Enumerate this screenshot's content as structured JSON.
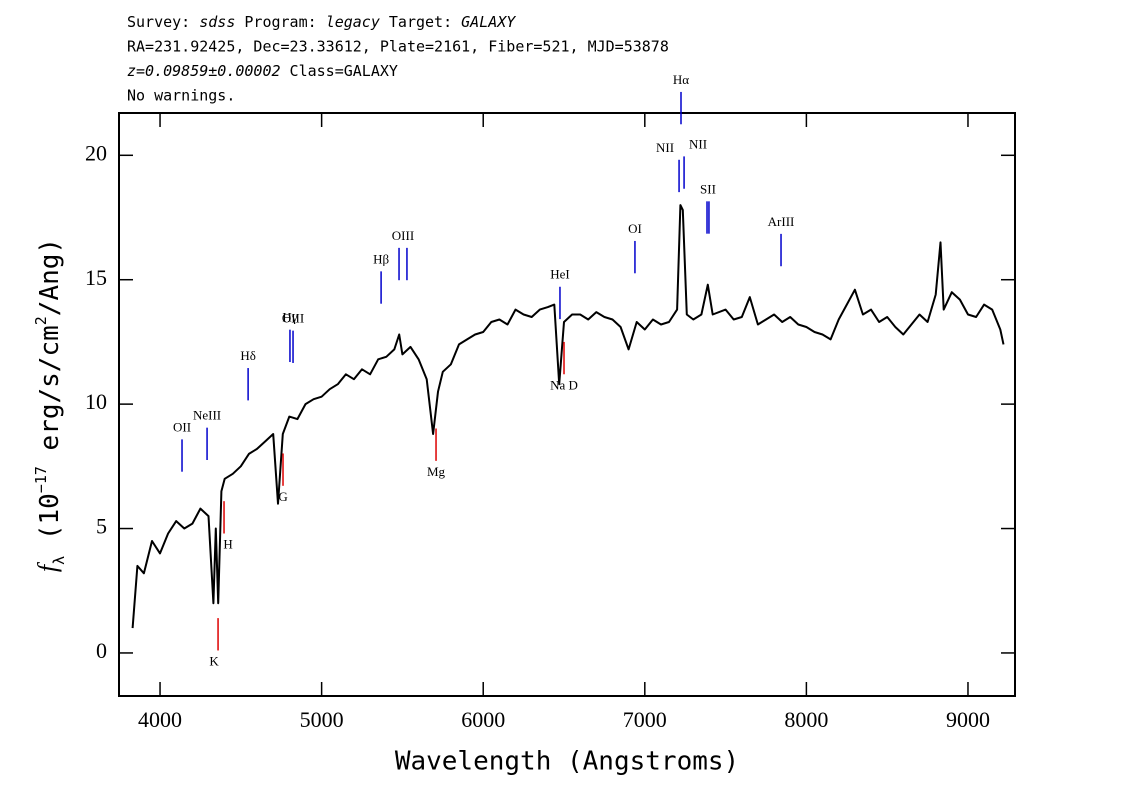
{
  "chart_data": {
    "type": "line",
    "header": [
      [
        {
          "text": "Survey: "
        },
        {
          "text": "sdss",
          "italic": true
        },
        {
          "text": " Program: "
        },
        {
          "text": "legacy",
          "italic": true
        },
        {
          "text": " Target: "
        },
        {
          "text": "GALAXY",
          "italic": true
        }
      ],
      [
        {
          "text": "RA=231.92425, Dec=23.33612, Plate=2161, Fiber=521, MJD=53878"
        }
      ],
      [
        {
          "text": "z=0.09859±0.00002",
          "italic": true
        },
        {
          "text": " Class=GALAXY"
        }
      ],
      [
        {
          "text": "No warnings."
        }
      ]
    ],
    "xlabel": "Wavelength (Angstroms)",
    "ylabel": [
      {
        "text": "f",
        "italic": true
      },
      {
        "text": "λ",
        "sub": true
      },
      {
        "text": " (10"
      },
      {
        "text": "−17",
        "sup": true
      },
      {
        "text": " erg/s/cm"
      },
      {
        "text": "2",
        "sup": true
      },
      {
        "text": "/Ang)"
      }
    ],
    "xlim": [
      3746,
      9291
    ],
    "ylim": [
      -1.73,
      21.7
    ],
    "xticks": [
      4000,
      5000,
      6000,
      7000,
      8000,
      9000
    ],
    "yticks": [
      0,
      5,
      10,
      15,
      20
    ],
    "series": [
      {
        "name": "flux",
        "color": "#000000",
        "x": [
          3830,
          3860,
          3900,
          3950,
          4000,
          4050,
          4100,
          4150,
          4200,
          4250,
          4300,
          4330,
          4345,
          4360,
          4380,
          4400,
          4450,
          4500,
          4550,
          4600,
          4650,
          4700,
          4730,
          4760,
          4800,
          4850,
          4900,
          4950,
          5000,
          5050,
          5100,
          5150,
          5200,
          5250,
          5300,
          5350,
          5400,
          5450,
          5480,
          5500,
          5550,
          5600,
          5650,
          5690,
          5720,
          5750,
          5800,
          5850,
          5900,
          5950,
          6000,
          6050,
          6100,
          6150,
          6200,
          6250,
          6300,
          6350,
          6400,
          6440,
          6470,
          6500,
          6550,
          6600,
          6650,
          6700,
          6750,
          6800,
          6850,
          6900,
          6950,
          7000,
          7050,
          7100,
          7150,
          7200,
          7220,
          7235,
          7260,
          7300,
          7350,
          7390,
          7420,
          7500,
          7550,
          7600,
          7650,
          7700,
          7750,
          7800,
          7850,
          7900,
          7950,
          8000,
          8050,
          8100,
          8150,
          8200,
          8250,
          8300,
          8350,
          8400,
          8450,
          8500,
          8550,
          8600,
          8650,
          8700,
          8750,
          8800,
          8830,
          8850,
          8900,
          8950,
          9000,
          9050,
          9100,
          9150,
          9200,
          9220
        ],
        "values": [
          1.0,
          3.5,
          3.2,
          4.5,
          4.0,
          4.8,
          5.3,
          5.0,
          5.2,
          5.8,
          5.5,
          2.0,
          5.0,
          2.0,
          6.5,
          7.0,
          7.2,
          7.5,
          8.0,
          8.2,
          8.5,
          8.8,
          6.0,
          8.8,
          9.5,
          9.4,
          10.0,
          10.2,
          10.3,
          10.6,
          10.8,
          11.2,
          11.0,
          11.4,
          11.2,
          11.8,
          11.9,
          12.2,
          12.8,
          12.0,
          12.3,
          11.8,
          11.0,
          8.8,
          10.5,
          11.3,
          11.6,
          12.4,
          12.6,
          12.8,
          12.9,
          13.3,
          13.4,
          13.2,
          13.8,
          13.6,
          13.5,
          13.8,
          13.9,
          14.0,
          10.8,
          13.3,
          13.6,
          13.6,
          13.4,
          13.7,
          13.5,
          13.4,
          13.1,
          12.2,
          13.3,
          13.0,
          13.4,
          13.2,
          13.3,
          13.8,
          18.0,
          17.8,
          13.6,
          13.4,
          13.6,
          14.8,
          13.6,
          13.8,
          13.4,
          13.5,
          14.3,
          13.2,
          13.4,
          13.6,
          13.3,
          13.5,
          13.2,
          13.1,
          12.9,
          12.8,
          12.6,
          13.4,
          14.0,
          14.6,
          13.6,
          13.8,
          13.3,
          13.5,
          13.1,
          12.8,
          13.2,
          13.6,
          13.3,
          14.4,
          16.5,
          13.8,
          14.5,
          14.2,
          13.6,
          13.5,
          14.0,
          13.8,
          13.0,
          12.4
        ]
      }
    ],
    "emission_lines": [
      {
        "label": "OII",
        "x": [
          4136
        ]
      },
      {
        "label": "NeIII",
        "x": [
          4291
        ]
      },
      {
        "label": "Hδ",
        "x": [
          4545
        ]
      },
      {
        "label": "Hγ",
        "x": [
          4804
        ]
      },
      {
        "label": "OIII",
        "x": [
          4823
        ]
      },
      {
        "label": "Hβ",
        "x": [
          5368
        ]
      },
      {
        "label": "OIII",
        "x": [
          5479,
          5528
        ]
      },
      {
        "label": "HeI",
        "x": [
          6475
        ]
      },
      {
        "label": "OI",
        "x": [
          6939
        ]
      },
      {
        "label": "NII",
        "x": [
          7212
        ]
      },
      {
        "label": "Hα",
        "x": [
          7224
        ]
      },
      {
        "label": "NII",
        "x": [
          7243
        ]
      },
      {
        "label": "SII",
        "x": [
          7385,
          7397
        ]
      },
      {
        "label": "ArIII",
        "x": [
          7843
        ]
      }
    ],
    "emission_color": "#0000cc",
    "absorption_lines": [
      {
        "label": "K",
        "x": [
          4359
        ]
      },
      {
        "label": "H",
        "x": [
          4396
        ]
      },
      {
        "label": "G",
        "x": [
          4761
        ]
      },
      {
        "label": "Mg",
        "x": [
          5708
        ]
      },
      {
        "label": "Na D",
        "x": [
          6500
        ]
      }
    ],
    "absorption_color": "#dd0000"
  }
}
